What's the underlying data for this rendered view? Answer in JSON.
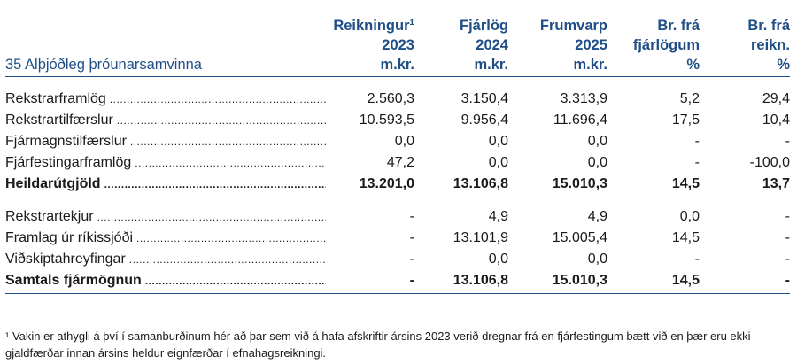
{
  "table": {
    "title": "35 Alþjóðleg þróunarsamvinna",
    "columns": [
      {
        "line1": "Reikningur¹",
        "line2": "2023",
        "line3": "m.kr."
      },
      {
        "line1": "Fjárlög",
        "line2": "2024",
        "line3": "m.kr."
      },
      {
        "line1": "Frumvarp",
        "line2": "2025",
        "line3": "m.kr."
      },
      {
        "line1": "Br. frá",
        "line2": "fjárlögum",
        "line3": "%"
      },
      {
        "line1": "Br. frá",
        "line2": "reikn.",
        "line3": "%"
      }
    ],
    "rows": [
      {
        "label": "Rekstrarframlög",
        "values": [
          "2.560,3",
          "3.150,4",
          "3.313,9",
          "5,2",
          "29,4"
        ]
      },
      {
        "label": "Rekstrartilfærslur",
        "values": [
          "10.593,5",
          "9.956,4",
          "11.696,4",
          "17,5",
          "10,4"
        ]
      },
      {
        "label": "Fjármagnstilfærslur",
        "values": [
          "0,0",
          "0,0",
          "0,0",
          "-",
          "-"
        ]
      },
      {
        "label": "Fjárfestingarframlög",
        "values": [
          "47,2",
          "0,0",
          "0,0",
          "-",
          "-100,0"
        ]
      },
      {
        "label": "Heildarútgjöld",
        "values": [
          "13.201,0",
          "13.106,8",
          "15.010,3",
          "14,5",
          "13,7"
        ]
      },
      {
        "label": "Rekstrartekjur",
        "values": [
          "-",
          "4,9",
          "4,9",
          "0,0",
          "-"
        ]
      },
      {
        "label": "Framlag úr ríkissjóði",
        "values": [
          "-",
          "13.101,9",
          "15.005,4",
          "14,5",
          "-"
        ]
      },
      {
        "label": "Viðskiptahreyfingar",
        "values": [
          "-",
          "0,0",
          "0,0",
          "-",
          "-"
        ]
      },
      {
        "label": "Samtals fjármögnun",
        "values": [
          "-",
          "13.106,8",
          "15.010,3",
          "14,5",
          "-"
        ]
      }
    ]
  },
  "footnote": "¹ Vakin er athygli á því í samanburðinum hér að þar sem við á hafa afskriftir ársins 2023 verið dregnar frá en fjárfestingum bætt við en þær eru ekki gjaldfærðar innan ársins heldur eignfærðar í efnahagsreikningi."
}
